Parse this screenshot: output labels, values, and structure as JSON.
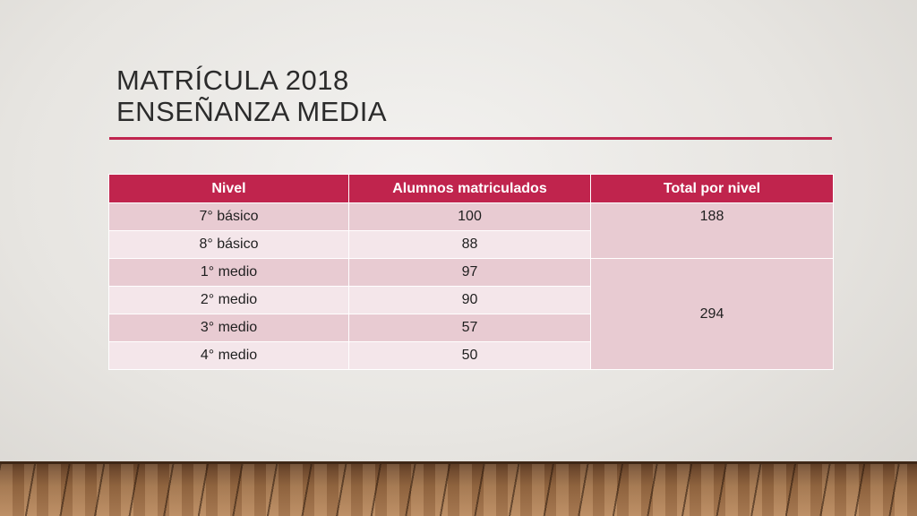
{
  "slide": {
    "title_line1": "Matrícula 2018",
    "title_line2": "Enseñanza Media"
  },
  "table": {
    "headers": [
      "Nivel",
      "Alumnos matriculados",
      "Total por nivel"
    ],
    "rows": [
      {
        "nivel": "7° básico",
        "alumnos": "100"
      },
      {
        "nivel": "8° básico",
        "alumnos": "88"
      },
      {
        "nivel": "1° medio",
        "alumnos": "97"
      },
      {
        "nivel": "2° medio",
        "alumnos": "90"
      },
      {
        "nivel": "3° medio",
        "alumnos": "57"
      },
      {
        "nivel": "4° medio",
        "alumnos": "50"
      }
    ],
    "totals": [
      "188",
      "294"
    ]
  },
  "colors": {
    "accent": "#c0244d",
    "row_dark": "#e8cbd2",
    "row_light": "#f4e6ea"
  }
}
